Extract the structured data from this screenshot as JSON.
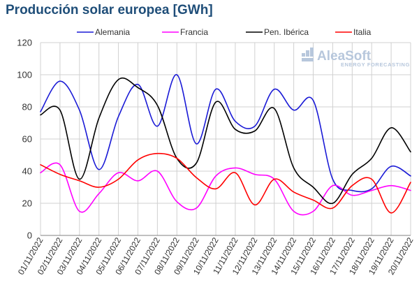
{
  "chart_data": {
    "type": "line",
    "title": "Producción solar europea [GWh]",
    "xlabel": "",
    "ylabel": "",
    "ylim": [
      0,
      120
    ],
    "yticks": [
      0,
      20,
      40,
      60,
      80,
      100,
      120
    ],
    "grid": true,
    "legend": "top",
    "categories": [
      "01/11/2022",
      "02/11/2022",
      "03/11/2022",
      "04/11/2022",
      "05/11/2022",
      "06/11/2022",
      "07/11/2022",
      "08/11/2022",
      "09/11/2022",
      "10/11/2022",
      "11/11/2022",
      "12/11/2022",
      "13/11/2022",
      "14/11/2022",
      "15/11/2022",
      "16/11/2022",
      "17/11/2022",
      "18/11/2022",
      "19/11/2022",
      "20/11/2022"
    ],
    "series": [
      {
        "name": "Alemania",
        "color": "#1a1ad6",
        "values": [
          77,
          96,
          78,
          41,
          74,
          94,
          68,
          100,
          57,
          91,
          71,
          68,
          91,
          78,
          84,
          35,
          28,
          29,
          43,
          37
        ]
      },
      {
        "name": "Francia",
        "color": "#ff00ff",
        "values": [
          39,
          44,
          15,
          26,
          39,
          34,
          40,
          21,
          17,
          37,
          42,
          38,
          35,
          15,
          15,
          31,
          25,
          28,
          31,
          28
        ]
      },
      {
        "name": "Pen. Ibérica",
        "color": "#000000",
        "values": [
          75,
          78,
          35,
          73,
          97,
          92,
          81,
          48,
          45,
          83,
          66,
          65,
          79,
          42,
          30,
          20,
          38,
          48,
          67,
          52
        ]
      },
      {
        "name": "Italia",
        "color": "#ff0000",
        "values": [
          44,
          38,
          34,
          30,
          35,
          47,
          51,
          48,
          36,
          29,
          39,
          19,
          35,
          27,
          22,
          17,
          31,
          35,
          14,
          33
        ]
      }
    ]
  },
  "logo": {
    "name": "AleaSoft",
    "tagline": "ENERGY FORECASTING"
  }
}
